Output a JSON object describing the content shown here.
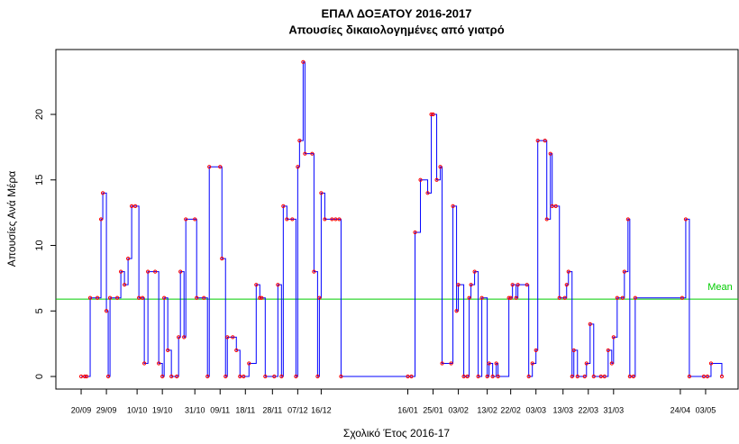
{
  "chart_data": {
    "type": "step",
    "title": "ΕΠΑΛ ΔΟΞΑΤΟΥ 2016-2017",
    "subtitle": "Απουσίες δικαιολογημένες από γιατρό",
    "xlabel": "Σχολικό Έτος 2016-17",
    "ylabel": "Απουσίες Ανά Μέρα",
    "x": [
      0,
      2,
      3,
      5,
      9,
      11,
      12,
      14,
      15,
      16,
      20,
      22,
      24,
      26,
      28,
      30,
      32,
      34,
      35,
      37,
      41,
      43,
      45,
      46,
      48,
      50,
      53,
      54,
      55,
      57,
      58,
      63,
      64,
      68,
      70,
      71,
      77,
      78,
      80,
      81,
      84,
      86,
      88,
      90,
      93,
      97,
      99,
      100,
      102,
      107,
      109,
      111,
      112,
      114,
      117,
      119,
      120,
      121,
      123,
      124,
      128,
      129,
      131,
      132,
      133,
      135,
      139,
      141,
      143,
      144,
      181,
      183,
      185,
      188,
      192,
      194,
      195,
      197,
      199,
      200,
      205,
      206,
      208,
      209,
      212,
      214,
      215,
      216,
      218,
      220,
      222,
      225,
      226,
      228,
      230,
      231,
      237,
      238,
      239,
      241,
      242,
      247,
      248,
      250,
      252,
      253,
      257,
      258,
      260,
      261,
      263,
      265,
      268,
      269,
      270,
      272,
      273,
      275,
      279,
      280,
      282,
      284,
      288,
      290,
      292,
      294,
      295,
      297,
      300,
      301,
      303,
      304,
      306,
      307,
      333,
      335,
      337,
      345,
      347,
      349,
      355
    ],
    "series": [
      {
        "color": "#0000ff",
        "marker_color": "#ff0000",
        "values": [
          0,
          0,
          0,
          6,
          6,
          12,
          14,
          5,
          0,
          6,
          6,
          8,
          7,
          9,
          13,
          13,
          6,
          6,
          1,
          8,
          8,
          1,
          0,
          6,
          2,
          0,
          0,
          3,
          8,
          3,
          12,
          12,
          6,
          6,
          0,
          16,
          16,
          9,
          0,
          3,
          3,
          2,
          0,
          0,
          1,
          7,
          6,
          6,
          0,
          0,
          7,
          0,
          13,
          12,
          12,
          0,
          16,
          18,
          24,
          17,
          17,
          8,
          0,
          6,
          14,
          12,
          12,
          12,
          12,
          0,
          0,
          0,
          11,
          15,
          14,
          20,
          20,
          15,
          16,
          1,
          1,
          13,
          5,
          7,
          0,
          0,
          6,
          7,
          8,
          0,
          6,
          0,
          1,
          0,
          1,
          0,
          6,
          6,
          7,
          6,
          7,
          7,
          0,
          1,
          2,
          18,
          18,
          12,
          17,
          13,
          13,
          6,
          6,
          7,
          8,
          0,
          2,
          0,
          0,
          1,
          4,
          0,
          0,
          0,
          2,
          1,
          3,
          6,
          6,
          8,
          12,
          0,
          0,
          6,
          6,
          12,
          0,
          0,
          0,
          1,
          0
        ]
      }
    ],
    "mean": {
      "label": "Mean",
      "value": 5.9,
      "color": "#00cc00"
    },
    "xlim": [
      -14,
      364
    ],
    "ylim": [
      -0.96,
      24.95
    ],
    "yticks": [
      0,
      5,
      10,
      15,
      20
    ],
    "xticks": [
      {
        "value": 0,
        "label": "20/09"
      },
      {
        "value": 14,
        "label": "29/09"
      },
      {
        "value": 31,
        "label": "10/10"
      },
      {
        "value": 45,
        "label": "19/10"
      },
      {
        "value": 63,
        "label": "31/10"
      },
      {
        "value": 77,
        "label": "09/11"
      },
      {
        "value": 91,
        "label": "18/11"
      },
      {
        "value": 106,
        "label": "28/11"
      },
      {
        "value": 120,
        "label": "07/12"
      },
      {
        "value": 133,
        "label": "16/12"
      },
      {
        "value": 181,
        "label": "16/01"
      },
      {
        "value": 195,
        "label": "25/01"
      },
      {
        "value": 209,
        "label": "03/02"
      },
      {
        "value": 225,
        "label": "13/02"
      },
      {
        "value": 238,
        "label": "22/02"
      },
      {
        "value": 252,
        "label": "03/03"
      },
      {
        "value": 267,
        "label": "13/03"
      },
      {
        "value": 281,
        "label": "22/03"
      },
      {
        "value": 295,
        "label": "31/03"
      },
      {
        "value": 332,
        "label": "24/04"
      },
      {
        "value": 346,
        "label": "03/05"
      }
    ]
  }
}
